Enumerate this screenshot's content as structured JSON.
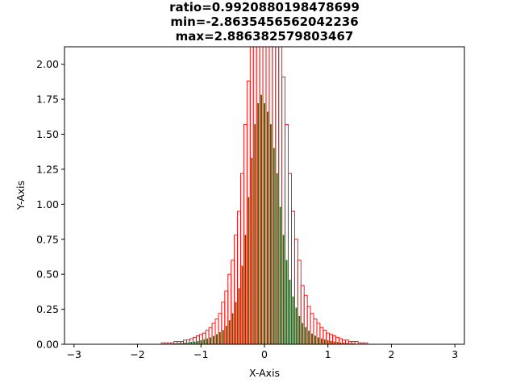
{
  "chart_data": {
    "type": "bar",
    "title": [
      "ratio=0.9920880198478699",
      "min=-2.8635456562042236",
      "max=2.886382579803467"
    ],
    "xlabel": "X-Axis",
    "ylabel": "Y-Axis",
    "xlim": [
      -3.15,
      3.15
    ],
    "ylim": [
      0,
      2.125
    ],
    "xticks": [
      -3,
      -2,
      -1,
      0,
      1,
      2,
      3
    ],
    "yticks": [
      "0.00",
      "0.25",
      "0.50",
      "0.75",
      "1.00",
      "1.25",
      "1.50",
      "1.75",
      "2.00"
    ],
    "grid": false,
    "colors": {
      "series_a": "#ff0000",
      "series_b": "#008000",
      "overlap": "#7a3c00"
    },
    "series": [
      {
        "style": "outline",
        "color": "#ff0000",
        "bin_width": 0.05,
        "x": [
          -1.6,
          -1.55,
          -1.5,
          -1.45,
          -1.4,
          -1.35,
          -1.3,
          -1.25,
          -1.2,
          -1.15,
          -1.1,
          -1.05,
          -1.0,
          -0.95,
          -0.9,
          -0.85,
          -0.8,
          -0.75,
          -0.7,
          -0.65,
          -0.6,
          -0.55,
          -0.5,
          -0.45,
          -0.4,
          -0.35,
          -0.3,
          -0.25,
          -0.2,
          -0.15,
          -0.1,
          -0.05,
          0.0,
          0.05,
          0.1,
          0.15,
          0.2,
          0.25,
          0.3,
          0.35,
          0.4,
          0.45,
          0.5,
          0.55,
          0.6,
          0.65,
          0.7,
          0.75,
          0.8,
          0.85,
          0.9,
          0.95,
          1.0,
          1.05,
          1.1,
          1.15,
          1.2,
          1.25,
          1.3,
          1.35,
          1.4,
          1.45,
          1.5,
          1.55,
          1.6
        ],
        "values": [
          0.01,
          0.01,
          0.01,
          0.01,
          0.02,
          0.02,
          0.02,
          0.03,
          0.03,
          0.04,
          0.05,
          0.06,
          0.07,
          0.08,
          0.1,
          0.12,
          0.15,
          0.18,
          0.22,
          0.3,
          0.38,
          0.5,
          0.6,
          0.78,
          0.95,
          1.22,
          1.57,
          1.88,
          2.16,
          2.2,
          2.2,
          2.2,
          2.2,
          2.2,
          2.2,
          2.2,
          2.2,
          2.2,
          1.91,
          1.57,
          1.22,
          0.95,
          0.75,
          0.6,
          0.42,
          0.35,
          0.27,
          0.22,
          0.18,
          0.15,
          0.12,
          0.1,
          0.08,
          0.07,
          0.06,
          0.05,
          0.04,
          0.03,
          0.03,
          0.02,
          0.02,
          0.02,
          0.01,
          0.01,
          0.01
        ]
      },
      {
        "style": "filled",
        "color": "#008000",
        "bin_width": 0.0165,
        "x": [
          -1.4,
          -1.35,
          -1.3,
          -1.25,
          -1.2,
          -1.15,
          -1.1,
          -1.05,
          -1.0,
          -0.95,
          -0.9,
          -0.85,
          -0.8,
          -0.75,
          -0.7,
          -0.65,
          -0.6,
          -0.55,
          -0.5,
          -0.45,
          -0.4,
          -0.35,
          -0.3,
          -0.25,
          -0.2,
          -0.15,
          -0.1,
          -0.05,
          0.0,
          0.05,
          0.1,
          0.15,
          0.2,
          0.25,
          0.3,
          0.35,
          0.4,
          0.45,
          0.5,
          0.55,
          0.6,
          0.65,
          0.7,
          0.75,
          0.8,
          0.85,
          0.9,
          0.95,
          1.0,
          1.05,
          1.1,
          1.15,
          1.2,
          1.25,
          1.3,
          1.35,
          1.4
        ],
        "values": [
          0.005,
          0.006,
          0.008,
          0.01,
          0.012,
          0.015,
          0.018,
          0.022,
          0.027,
          0.033,
          0.04,
          0.048,
          0.058,
          0.07,
          0.085,
          0.1,
          0.13,
          0.17,
          0.22,
          0.3,
          0.4,
          0.56,
          0.78,
          1.05,
          1.33,
          1.57,
          1.72,
          1.78,
          1.72,
          1.66,
          1.57,
          1.4,
          1.22,
          0.98,
          0.78,
          0.6,
          0.46,
          0.34,
          0.26,
          0.2,
          0.15,
          0.12,
          0.095,
          0.075,
          0.06,
          0.048,
          0.04,
          0.033,
          0.027,
          0.022,
          0.018,
          0.015,
          0.012,
          0.01,
          0.008,
          0.006,
          0.005
        ]
      }
    ]
  }
}
